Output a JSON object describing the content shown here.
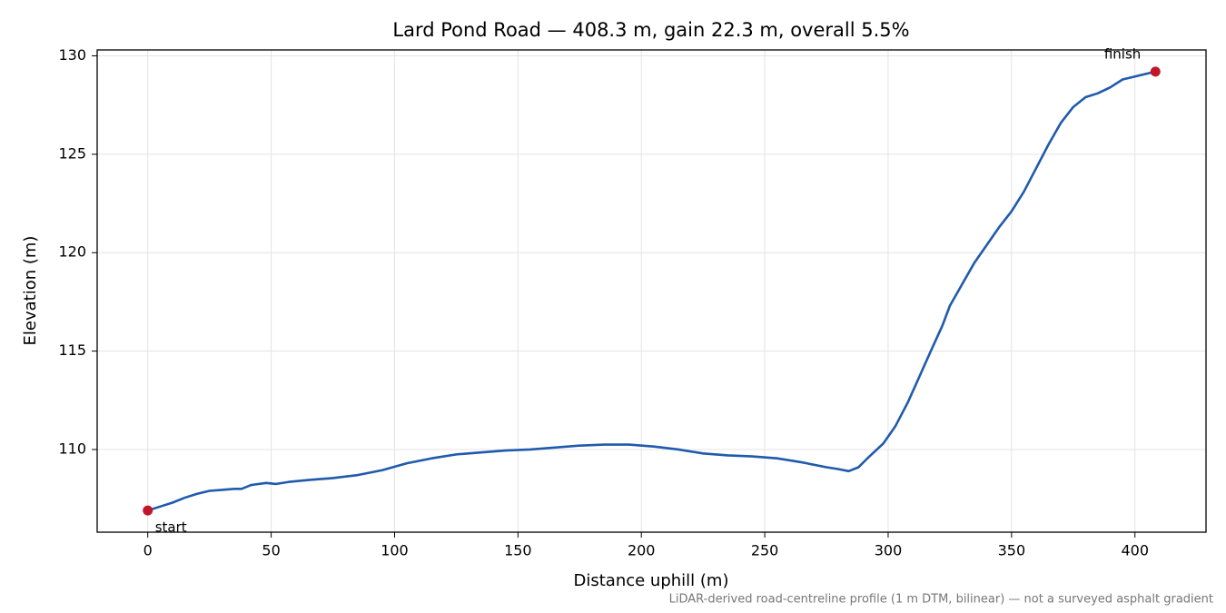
{
  "chart_data": {
    "type": "line",
    "title": "Lard Pond Road — 408.3 m, gain 22.3 m, overall 5.5%",
    "x_label": "Distance uphill (m)",
    "y_label": "Elevation (m)",
    "note": "LiDAR-derived road-centreline profile (1 m DTM, bilinear) — not a surveyed asphalt gradient",
    "x": [
      0,
      5,
      10,
      15,
      20,
      25,
      30,
      35,
      38,
      42,
      48,
      52,
      57,
      65,
      75,
      85,
      95,
      105,
      115,
      125,
      135,
      145,
      155,
      165,
      175,
      185,
      195,
      205,
      215,
      225,
      235,
      245,
      255,
      265,
      275,
      280,
      284,
      288,
      292,
      298,
      303,
      308,
      313,
      318,
      322,
      325,
      330,
      335,
      340,
      345,
      350,
      355,
      360,
      365,
      370,
      375,
      380,
      385,
      390,
      395,
      400,
      405,
      408.3
    ],
    "series": [
      {
        "color": "#1f5aad",
        "values": [
          106.9,
          107.1,
          107.3,
          107.55,
          107.75,
          107.9,
          107.95,
          108.0,
          108.0,
          108.2,
          108.3,
          108.25,
          108.35,
          108.45,
          108.55,
          108.7,
          108.95,
          109.3,
          109.55,
          109.75,
          109.85,
          109.95,
          110.0,
          110.1,
          110.2,
          110.25,
          110.25,
          110.15,
          110.0,
          109.8,
          109.7,
          109.65,
          109.55,
          109.35,
          109.1,
          109.0,
          108.9,
          109.1,
          109.6,
          110.3,
          111.2,
          112.4,
          113.8,
          115.2,
          116.3,
          117.3,
          118.4,
          119.5,
          120.4,
          121.3,
          122.1,
          123.1,
          124.3,
          125.5,
          126.6,
          127.4,
          127.9,
          128.1,
          128.4,
          128.8,
          128.95,
          129.1,
          129.2
        ]
      }
    ],
    "markers": {
      "color": "#c0182a",
      "labels": [
        "start",
        "finish"
      ],
      "x": [
        0,
        408.3
      ],
      "y": [
        106.9,
        129.2
      ]
    },
    "xlim": [
      -20.5,
      428.8
    ],
    "ylim": [
      105.8,
      130.3
    ],
    "xticks": [
      0,
      50,
      100,
      150,
      200,
      250,
      300,
      350,
      400
    ],
    "yticks": [
      110,
      115,
      120,
      125,
      130
    ],
    "grid": true
  }
}
